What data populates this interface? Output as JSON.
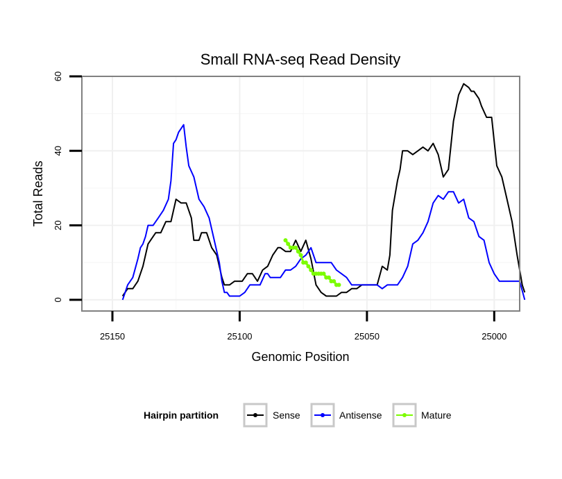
{
  "chart_data": {
    "type": "line",
    "title": "Small RNA-seq Read Density",
    "xlabel": "Genomic Position",
    "ylabel": "Total Reads",
    "xlim": [
      25162,
      24990
    ],
    "ylim": [
      -3,
      60
    ],
    "x_reversed": true,
    "x_ticks": [
      25150,
      25100,
      25050,
      25000
    ],
    "y_ticks": [
      0,
      20,
      40,
      60
    ],
    "grid": true,
    "legend": {
      "title": "Hairpin partition",
      "position": "bottom",
      "entries": [
        "Sense",
        "Antisense",
        "Mature"
      ]
    },
    "colors": {
      "Sense": "#000000",
      "Antisense": "#0000ff",
      "Mature": "#7cfc00"
    },
    "series": [
      {
        "name": "Sense",
        "x": [
          25146,
          25144,
          25142,
          25140,
          25138,
          25136,
          25134,
          25133,
          25131,
          25129,
          25127,
          25125,
          25123,
          25121,
          25119,
          25118,
          25116,
          25115,
          25113,
          25111,
          25109,
          25107,
          25106,
          25104,
          25102,
          25100,
          25099,
          25097,
          25095,
          25093,
          25091,
          25089,
          25087,
          25085,
          25084,
          25082,
          25080,
          25078,
          25076,
          25074,
          25072,
          25070,
          25068,
          25066,
          25064,
          25062,
          25060,
          25058,
          25056,
          25054,
          25052,
          25050,
          25048,
          25046,
          25044,
          25042,
          25041,
          25040,
          25038,
          25037,
          25036,
          25034,
          25032,
          25030,
          25028,
          25026,
          25024,
          25022,
          25020,
          25018,
          25016,
          25014,
          25012,
          25010,
          25009,
          25008,
          25006,
          25005,
          25003,
          25001,
          24999,
          24997,
          24995,
          24993,
          24991,
          24989,
          24988
        ],
        "values": [
          1,
          3,
          3,
          5,
          9,
          15,
          17,
          18,
          18,
          21,
          21,
          27,
          26,
          26,
          22,
          16,
          16,
          18,
          18,
          14,
          12,
          6,
          4,
          4,
          5,
          5,
          5,
          7,
          7,
          5,
          8,
          9,
          12,
          14,
          14,
          13,
          13,
          16,
          13,
          16,
          11,
          4,
          2,
          1,
          1,
          1,
          2,
          2,
          3,
          3,
          4,
          4,
          4,
          4,
          9,
          8,
          12,
          24,
          32,
          35,
          40,
          40,
          39,
          40,
          41,
          40,
          42,
          39,
          33,
          35,
          48,
          55,
          58,
          57,
          56,
          56,
          54,
          52,
          49,
          49,
          36,
          33,
          27,
          21,
          12,
          4,
          2
        ]
      },
      {
        "name": "Antisense",
        "x": [
          25146,
          25145,
          25144,
          25142,
          25140,
          25139,
          25138,
          25137,
          25136,
          25134,
          25132,
          25130,
          25128,
          25127,
          25126,
          25125,
          25124,
          25123,
          25122,
          25121,
          25120,
          25118,
          25116,
          25114,
          25112,
          25110,
          25108,
          25107,
          25106,
          25105,
          25104,
          25102,
          25100,
          25098,
          25096,
          25094,
          25093,
          25092,
          25090,
          25089,
          25088,
          25086,
          25084,
          25082,
          25080,
          25078,
          25076,
          25074,
          25072,
          25070,
          25068,
          25066,
          25064,
          25062,
          25060,
          25058,
          25056,
          25054,
          25052,
          25050,
          25048,
          25046,
          25044,
          25042,
          25040,
          25038,
          25036,
          25034,
          25032,
          25030,
          25028,
          25026,
          25024,
          25022,
          25020,
          25018,
          25016,
          25014,
          25012,
          25010,
          25008,
          25006,
          25004,
          25002,
          25000,
          24998,
          24996,
          24994,
          24992,
          24990,
          24988
        ],
        "values": [
          0,
          2,
          4,
          6,
          11,
          14,
          15,
          17,
          20,
          20,
          22,
          24,
          27,
          32,
          42,
          43,
          45,
          46,
          47,
          41,
          36,
          33,
          27,
          25,
          22,
          16,
          10,
          5,
          2,
          2,
          1,
          1,
          1,
          2,
          4,
          4,
          4,
          4,
          7,
          7,
          6,
          6,
          6,
          8,
          8,
          9,
          11,
          12,
          14,
          10,
          10,
          10,
          10,
          8,
          7,
          6,
          4,
          4,
          4,
          4,
          4,
          4,
          3,
          4,
          4,
          4,
          6,
          9,
          15,
          16,
          18,
          21,
          26,
          28,
          27,
          29,
          29,
          26,
          27,
          22,
          21,
          17,
          16,
          10,
          7,
          5,
          5,
          5,
          5,
          5,
          0
        ]
      },
      {
        "name": "Mature",
        "x": [
          25082,
          25081,
          25080,
          25079,
          25078,
          25077,
          25076,
          25075,
          25074,
          25073,
          25072,
          25071,
          25070,
          25069,
          25068,
          25067,
          25066,
          25065,
          25064,
          25063,
          25062,
          25061
        ],
        "values": [
          16,
          15,
          14,
          14,
          14,
          13,
          12,
          10,
          10,
          9,
          8,
          7,
          7,
          7,
          7,
          7,
          6,
          6,
          5,
          5,
          4,
          4
        ]
      }
    ]
  }
}
